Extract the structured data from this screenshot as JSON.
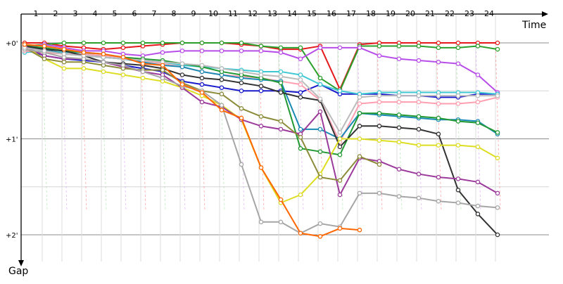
{
  "chart_data": {
    "type": "line",
    "title": "",
    "xlabel": "Time",
    "ylabel": "Gap",
    "x_ticks": [
      "1",
      "2",
      "3",
      "4",
      "5",
      "6",
      "7",
      "8",
      "9",
      "10",
      "11",
      "12",
      "13",
      "14",
      "15",
      "16",
      "17",
      "18",
      "19",
      "20",
      "21",
      "22",
      "23",
      "24"
    ],
    "y_ticks": [
      {
        "label": "+0'",
        "value": 0
      },
      {
        "label": "+1'",
        "value": 60
      },
      {
        "label": "+2'",
        "value": 120
      }
    ],
    "ylim": [
      0,
      140
    ],
    "grid": true,
    "legend": "none",
    "series": [
      {
        "color": "#e41a1c",
        "values": [
          0,
          0,
          2,
          3,
          4,
          3,
          2,
          1,
          0,
          0,
          0,
          1,
          2,
          4,
          4,
          2,
          29,
          1,
          0,
          0,
          0,
          0,
          0,
          0,
          0
        ]
      },
      {
        "color": "#2ca02c",
        "values": [
          2,
          1,
          0,
          0,
          0,
          0,
          0,
          0,
          0,
          0,
          0,
          0,
          2,
          3,
          3,
          22,
          30,
          2,
          2,
          2,
          2,
          3,
          3,
          2,
          4
        ]
      },
      {
        "color": "#b84ee8",
        "values": [
          3,
          1,
          3,
          5,
          5,
          7,
          8,
          6,
          5,
          5,
          5,
          5,
          5,
          6,
          10,
          3,
          3,
          3,
          8,
          10,
          11,
          12,
          13,
          20,
          31
        ]
      },
      {
        "color": "#1a1acc",
        "values": [
          4,
          8,
          10,
          11,
          12,
          14,
          16,
          18,
          24,
          26,
          28,
          30,
          30,
          30,
          31,
          26,
          32,
          32,
          32,
          33,
          33,
          34,
          34,
          32,
          32
        ]
      },
      {
        "color": "#3fc8d2",
        "values": [
          6,
          5,
          6,
          6,
          9,
          10,
          11,
          12,
          14,
          15,
          16,
          17,
          18,
          18,
          20,
          26,
          30,
          32,
          31,
          31,
          31,
          31,
          31,
          31,
          32
        ]
      },
      {
        "color": "#ff9fb0",
        "values": [
          5,
          6,
          7,
          7,
          8,
          9,
          11,
          13,
          15,
          18,
          20,
          21,
          22,
          24,
          26,
          36,
          62,
          38,
          37,
          37,
          37,
          38,
          38,
          37,
          34
        ]
      },
      {
        "color": "#1a8ab5",
        "values": [
          3,
          4,
          7,
          8,
          9,
          10,
          12,
          14,
          15,
          18,
          20,
          22,
          23,
          24,
          54,
          54,
          60,
          44,
          45,
          46,
          47,
          48,
          48,
          49,
          57
        ]
      },
      {
        "color": "#229933",
        "values": [
          2,
          3,
          5,
          6,
          7,
          9,
          10,
          11,
          13,
          15,
          18,
          20,
          22,
          25,
          66,
          68,
          70,
          44,
          44,
          45,
          46,
          47,
          49,
          50,
          56
        ]
      },
      {
        "color": "#333333",
        "values": [
          2,
          4,
          5,
          8,
          12,
          13,
          14,
          16,
          20,
          22,
          23,
          25,
          27,
          31,
          34,
          36,
          65,
          52,
          52,
          53,
          54,
          57,
          92,
          107,
          120
        ]
      },
      {
        "color": "#dddd22",
        "values": [
          2,
          10,
          16,
          16,
          18,
          20,
          22,
          24,
          28,
          33,
          39,
          48,
          78,
          100,
          95,
          82,
          60,
          60,
          61,
          62,
          64,
          64,
          64,
          65,
          72
        ]
      },
      {
        "color": "#9b3a9b",
        "values": [
          2,
          8,
          10,
          10,
          12,
          15,
          18,
          20,
          28,
          37,
          40,
          48,
          52,
          54,
          57,
          43,
          95,
          72,
          74,
          79,
          82,
          84,
          85,
          87,
          94
        ]
      },
      {
        "color": "#8b8b3a",
        "values": [
          3,
          10,
          12,
          12,
          14,
          16,
          17,
          17,
          25,
          30,
          32,
          41,
          46,
          49,
          59,
          84,
          86,
          71,
          76,
          null,
          null,
          null,
          null,
          null,
          null
        ]
      },
      {
        "color": "#a6a6a6",
        "values": [
          4,
          6,
          9,
          10,
          12,
          14,
          18,
          22,
          27,
          30,
          39,
          76,
          112,
          112,
          119,
          113,
          115,
          94,
          94,
          96,
          97,
          99,
          100,
          102,
          103
        ]
      },
      {
        "color": "#bbbbbb",
        "values": [
          3,
          5,
          7,
          8,
          9,
          10,
          11,
          12,
          13,
          14,
          16,
          18,
          20,
          21,
          23,
          35,
          56,
          34,
          33,
          33,
          33,
          33,
          33,
          33,
          33
        ]
      },
      {
        "color": "#ff6600",
        "values": [
          1,
          2,
          4,
          6,
          7,
          9,
          13,
          14,
          26,
          31,
          42,
          47,
          78,
          98,
          119,
          121,
          116,
          117,
          null,
          null,
          null,
          null,
          null,
          null,
          null
        ]
      }
    ]
  }
}
